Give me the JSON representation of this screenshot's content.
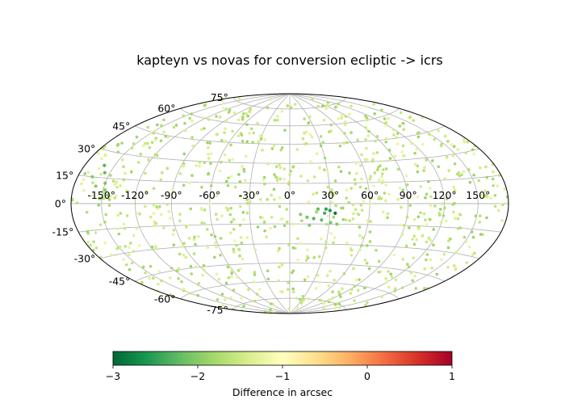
{
  "chart_data": {
    "type": "scatter",
    "projection": "aitoff-hammer",
    "title": "kapteyn vs novas for conversion ecliptic -> icrs",
    "lon_ticks": [
      "-150°",
      "-120°",
      "-90°",
      "-60°",
      "-30°",
      "0°",
      "30°",
      "60°",
      "90°",
      "120°",
      "150°"
    ],
    "lon_values": [
      -150,
      -120,
      -90,
      -60,
      -30,
      0,
      30,
      60,
      90,
      120,
      150
    ],
    "lat_ticks": [
      "75°",
      "60°",
      "45°",
      "30°",
      "15°",
      "0°",
      "-15°",
      "-30°",
      "-45°",
      "-60°",
      "-75°"
    ],
    "lat_values": [
      75,
      60,
      45,
      30,
      15,
      0,
      -15,
      -30,
      -45,
      -60,
      -75
    ],
    "grid": true,
    "colormap": "RdYlGn_r",
    "clim": [
      -3,
      1
    ],
    "colorbar": {
      "label": "Difference in arcsec",
      "ticks": [
        "−3",
        "−2",
        "−1",
        "0",
        "1"
      ],
      "tick_values": [
        -3,
        -2,
        -1,
        0,
        1
      ],
      "orientation": "horizontal"
    },
    "point_count_background": 900,
    "background_value_range": [
      -1.9,
      -1.2
    ],
    "highlighted_points": [
      {
        "lon": 34,
        "lat": -7,
        "value": -2.9
      },
      {
        "lon": 30,
        "lat": -5,
        "value": -2.6
      },
      {
        "lon": 27,
        "lat": -4,
        "value": -2.5
      },
      {
        "lon": 26,
        "lat": -7,
        "value": -2.4
      },
      {
        "lon": 21,
        "lat": -4,
        "value": -2.2
      },
      {
        "lon": 18,
        "lat": -11,
        "value": -2.3
      },
      {
        "lon": 24,
        "lat": -12,
        "value": -2.2
      },
      {
        "lon": 31,
        "lat": -14,
        "value": -2.1
      },
      {
        "lon": 13,
        "lat": -10,
        "value": -2.1
      },
      {
        "lon": 15,
        "lat": -16,
        "value": -2.0
      },
      {
        "lon": 36,
        "lat": -15,
        "value": -2.0
      },
      {
        "lon": 8,
        "lat": -8,
        "value": -2.0
      },
      {
        "lon": -160,
        "lat": 22,
        "value": -2.3
      },
      {
        "lon": -155,
        "lat": 18,
        "value": -2.2
      },
      {
        "lon": -150,
        "lat": 12,
        "value": -2.1
      },
      {
        "lon": -148,
        "lat": 8,
        "value": -2.0
      },
      {
        "lon": -158,
        "lat": 10,
        "value": -2.0
      },
      {
        "lon": -145,
        "lat": 5,
        "value": -2.0
      },
      {
        "lon": -165,
        "lat": 15,
        "value": -2.0
      },
      {
        "lon": -152,
        "lat": 3,
        "value": -1.9
      }
    ]
  }
}
